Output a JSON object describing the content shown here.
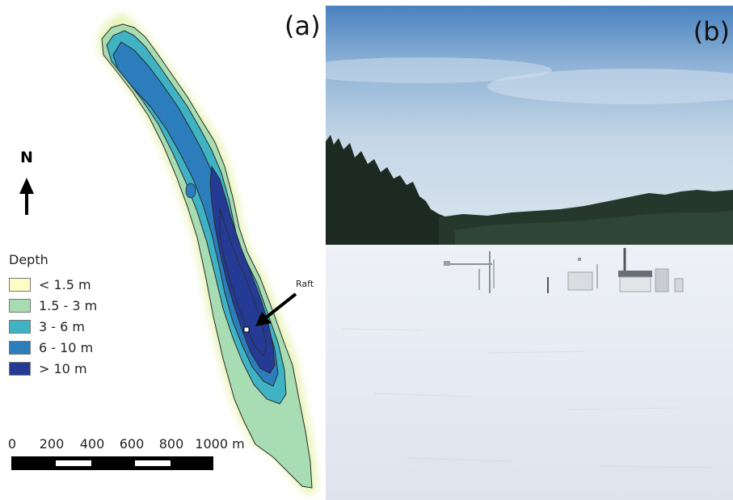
{
  "panel_a": {
    "label": "(a)",
    "north_label": "N",
    "legend": {
      "title": "Depth",
      "items": [
        {
          "label": "< 1.5 m",
          "color": "#fdfcc4"
        },
        {
          "label": "1.5 - 3 m",
          "color": "#a8dcb3"
        },
        {
          "label": "3 - 6 m",
          "color": "#3fb3c4"
        },
        {
          "label": "6 - 10 m",
          "color": "#2b7ebb"
        },
        {
          "label": "> 10 m",
          "color": "#253a94"
        }
      ]
    },
    "scale_bar": {
      "ticks": [
        "0",
        "200",
        "400",
        "600",
        "800",
        "1000 m"
      ]
    },
    "annotation": {
      "label": "Raft"
    }
  },
  "panel_b": {
    "label": "(b)"
  }
}
